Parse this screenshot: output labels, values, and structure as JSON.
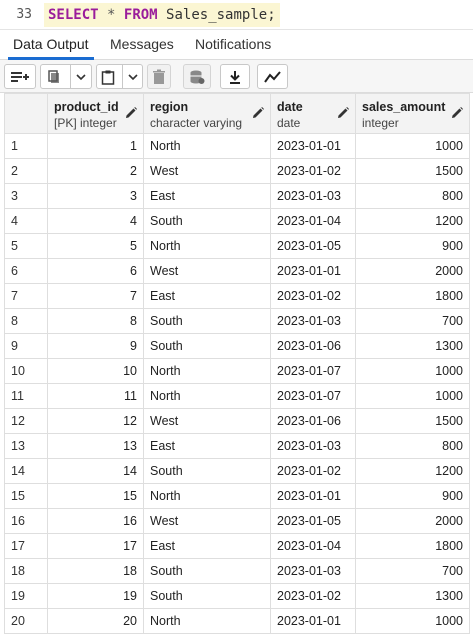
{
  "editor": {
    "line_number": "33",
    "kw_select": "SELECT",
    "star": "*",
    "kw_from": "FROM",
    "table": "Sales_sample;"
  },
  "tabs": [
    {
      "label": "Data Output"
    },
    {
      "label": "Messages"
    },
    {
      "label": "Notifications"
    }
  ],
  "toolbar": {
    "icons": [
      "add-row-icon",
      "copy-icon",
      "chevron-down-icon",
      "paste-icon",
      "chevron-down-icon",
      "delete-icon",
      "save-data-icon",
      "download-icon",
      "graph-icon"
    ]
  },
  "columns": [
    {
      "name": "product_id",
      "type": "[PK] integer"
    },
    {
      "name": "region",
      "type": "character varying"
    },
    {
      "name": "date",
      "type": "date"
    },
    {
      "name": "sales_amount",
      "type": "integer"
    }
  ],
  "rows": [
    {
      "n": "1",
      "product_id": "1",
      "region": "North",
      "date": "2023-01-01",
      "sales_amount": "1000"
    },
    {
      "n": "2",
      "product_id": "2",
      "region": "West",
      "date": "2023-01-02",
      "sales_amount": "1500"
    },
    {
      "n": "3",
      "product_id": "3",
      "region": "East",
      "date": "2023-01-03",
      "sales_amount": "800"
    },
    {
      "n": "4",
      "product_id": "4",
      "region": "South",
      "date": "2023-01-04",
      "sales_amount": "1200"
    },
    {
      "n": "5",
      "product_id": "5",
      "region": "North",
      "date": "2023-01-05",
      "sales_amount": "900"
    },
    {
      "n": "6",
      "product_id": "6",
      "region": "West",
      "date": "2023-01-01",
      "sales_amount": "2000"
    },
    {
      "n": "7",
      "product_id": "7",
      "region": "East",
      "date": "2023-01-02",
      "sales_amount": "1800"
    },
    {
      "n": "8",
      "product_id": "8",
      "region": "South",
      "date": "2023-01-03",
      "sales_amount": "700"
    },
    {
      "n": "9",
      "product_id": "9",
      "region": "South",
      "date": "2023-01-06",
      "sales_amount": "1300"
    },
    {
      "n": "10",
      "product_id": "10",
      "region": "North",
      "date": "2023-01-07",
      "sales_amount": "1000"
    },
    {
      "n": "11",
      "product_id": "11",
      "region": "North",
      "date": "2023-01-07",
      "sales_amount": "1000"
    },
    {
      "n": "12",
      "product_id": "12",
      "region": "West",
      "date": "2023-01-06",
      "sales_amount": "1500"
    },
    {
      "n": "13",
      "product_id": "13",
      "region": "East",
      "date": "2023-01-03",
      "sales_amount": "800"
    },
    {
      "n": "14",
      "product_id": "14",
      "region": "South",
      "date": "2023-01-02",
      "sales_amount": "1200"
    },
    {
      "n": "15",
      "product_id": "15",
      "region": "North",
      "date": "2023-01-01",
      "sales_amount": "900"
    },
    {
      "n": "16",
      "product_id": "16",
      "region": "West",
      "date": "2023-01-05",
      "sales_amount": "2000"
    },
    {
      "n": "17",
      "product_id": "17",
      "region": "East",
      "date": "2023-01-04",
      "sales_amount": "1800"
    },
    {
      "n": "18",
      "product_id": "18",
      "region": "South",
      "date": "2023-01-03",
      "sales_amount": "700"
    },
    {
      "n": "19",
      "product_id": "19",
      "region": "South",
      "date": "2023-01-02",
      "sales_amount": "1300"
    },
    {
      "n": "20",
      "product_id": "20",
      "region": "North",
      "date": "2023-01-01",
      "sales_amount": "1000"
    }
  ],
  "colors": {
    "accent": "#1a6cd1",
    "keyword": "#9b1d9b",
    "editor_highlight": "#fbf6d3"
  }
}
